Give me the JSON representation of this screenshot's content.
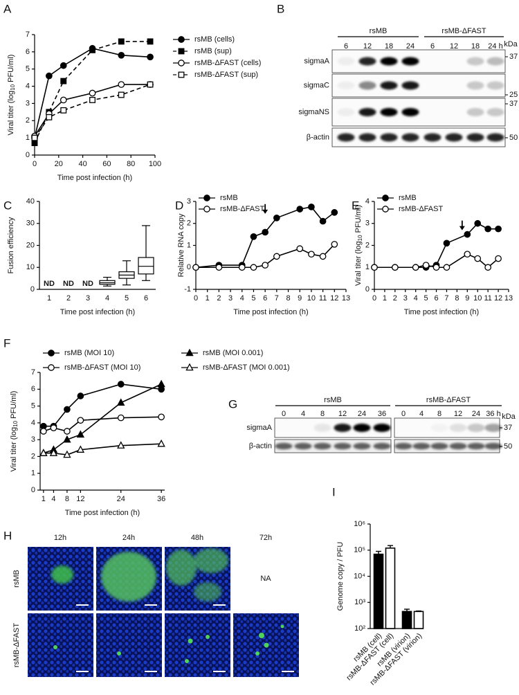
{
  "chart_data": [
    {
      "panel": "A",
      "type": "line",
      "xlabel": "Time post infection (h)",
      "ylabel": [
        "Viral titer (log",
        "10",
        " PFU/ml)"
      ],
      "xlim": [
        0,
        100
      ],
      "xticks": [
        0,
        20,
        40,
        60,
        80,
        100
      ],
      "ylim": [
        0,
        7
      ],
      "yticks": [
        0,
        1,
        2,
        3,
        4,
        5,
        6,
        7
      ],
      "series": [
        {
          "name": "rsMB (cells)",
          "color": "#000000",
          "marker": "circle",
          "filled": true,
          "dashed": false,
          "x": [
            0,
            12,
            24,
            48,
            72,
            96
          ],
          "values": [
            1.0,
            4.6,
            5.2,
            6.2,
            5.8,
            5.7
          ]
        },
        {
          "name": "rsMB (sup)",
          "color": "#000000",
          "marker": "square",
          "filled": true,
          "dashed": true,
          "x": [
            0,
            12,
            24,
            48,
            72,
            96
          ],
          "values": [
            0.7,
            2.5,
            4.3,
            6.1,
            6.6,
            6.6
          ]
        },
        {
          "name": "rsMB-ΔFAST (cells)",
          "color": "#000000",
          "marker": "circle",
          "filled": false,
          "dashed": false,
          "x": [
            0,
            12,
            24,
            48,
            72,
            96
          ],
          "values": [
            1.1,
            2.4,
            3.2,
            3.6,
            4.1,
            4.1
          ]
        },
        {
          "name": "rsMB-ΔFAST (sup)",
          "color": "#000000",
          "marker": "square",
          "filled": false,
          "dashed": true,
          "x": [
            0,
            12,
            24,
            48,
            72,
            96
          ],
          "values": [
            1.0,
            2.2,
            2.6,
            3.2,
            3.5,
            4.1
          ]
        }
      ]
    },
    {
      "panel": "C",
      "type": "box",
      "xlabel": "Time post infection (h)",
      "ylabel": "Fusion efficiency",
      "categories": [
        "1",
        "2",
        "3",
        "4",
        "5",
        "6"
      ],
      "notes": [
        "ND",
        "ND",
        "ND",
        null,
        null,
        null
      ],
      "boxes": [
        null,
        null,
        null,
        {
          "min": 1.5,
          "q1": 2.3,
          "median": 3,
          "q3": 4,
          "max": 5.5
        },
        {
          "min": 2,
          "q1": 5,
          "median": 6.5,
          "q3": 8,
          "max": 13
        },
        {
          "min": 4,
          "q1": 7,
          "median": 10.5,
          "q3": 14.5,
          "max": 29
        }
      ],
      "ylim": [
        0,
        40
      ],
      "yticks": [
        0,
        10,
        20,
        30,
        40
      ],
      "color": "#000000"
    },
    {
      "panel": "D",
      "type": "line",
      "xlabel": "Time post infection (h)",
      "ylabel": "Relative RNA copy",
      "xlim": [
        0,
        13
      ],
      "xticks": [
        0,
        1,
        2,
        3,
        4,
        5,
        6,
        7,
        8,
        9,
        10,
        11,
        12,
        13
      ],
      "ylim": [
        -1,
        3
      ],
      "yticks": [
        -1,
        0,
        1,
        2,
        3
      ],
      "arrow_x": 6,
      "series": [
        {
          "name": "rsMB",
          "color": "#000000",
          "marker": "circle",
          "filled": true,
          "dashed": false,
          "x": [
            0,
            2,
            4,
            5,
            6,
            7,
            9,
            10,
            11,
            12
          ],
          "values": [
            0,
            0.1,
            0.1,
            1.4,
            1.6,
            2.25,
            2.65,
            2.75,
            2.1,
            2.5
          ]
        },
        {
          "name": "rsMB-ΔFAST",
          "color": "#000000",
          "marker": "circle",
          "filled": false,
          "dashed": false,
          "x": [
            0,
            2,
            4,
            5,
            6,
            7,
            9,
            10,
            11,
            12
          ],
          "values": [
            0,
            0,
            0,
            0,
            0.1,
            0.5,
            0.85,
            0.6,
            0.5,
            1.05
          ]
        }
      ]
    },
    {
      "panel": "E",
      "type": "line",
      "xlabel": "Time post infection (h)",
      "ylabel": [
        "Viral titer (log",
        "10",
        " PFU/ml)"
      ],
      "xlim": [
        0,
        13
      ],
      "xticks": [
        0,
        1,
        2,
        3,
        4,
        5,
        6,
        7,
        8,
        9,
        10,
        11,
        12,
        13
      ],
      "ylim": [
        0,
        4
      ],
      "yticks": [
        0,
        1,
        2,
        3,
        4
      ],
      "arrow_x": 8.5,
      "series": [
        {
          "name": "rsMB",
          "color": "#000000",
          "marker": "circle",
          "filled": true,
          "dashed": false,
          "x": [
            0,
            2,
            4,
            5,
            6,
            7,
            9,
            10,
            11,
            12
          ],
          "values": [
            1,
            1,
            1,
            1,
            1.1,
            2.1,
            2.5,
            3.0,
            2.75,
            2.75
          ]
        },
        {
          "name": "rsMB-ΔFAST",
          "color": "#000000",
          "marker": "circle",
          "filled": false,
          "dashed": false,
          "x": [
            0,
            2,
            4,
            5,
            6,
            7,
            9,
            10,
            11,
            12
          ],
          "values": [
            1,
            1,
            1,
            1.1,
            1.0,
            1.0,
            1.6,
            1.4,
            1.0,
            1.4
          ]
        }
      ]
    },
    {
      "panel": "F",
      "type": "line",
      "xlabel": "Time post infection (h)",
      "ylabel": [
        "Viral titer (log",
        "10",
        " PFU/ml)"
      ],
      "xlim": [
        0,
        37
      ],
      "xticks": [
        1,
        4,
        8,
        12,
        24,
        36
      ],
      "ylim": [
        0,
        7
      ],
      "yticks": [
        0,
        1,
        2,
        3,
        4,
        5,
        6,
        7
      ],
      "series": [
        {
          "name": "rsMB (MOI 10)",
          "color": "#000000",
          "marker": "circle",
          "filled": true,
          "dashed": false,
          "x": [
            1,
            4,
            8,
            12,
            24,
            36
          ],
          "values": [
            3.8,
            3.8,
            4.8,
            5.6,
            6.3,
            6.0
          ]
        },
        {
          "name": "rsMB-ΔFAST (MOI 10)",
          "color": "#000000",
          "marker": "circle",
          "filled": false,
          "dashed": false,
          "x": [
            1,
            4,
            8,
            12,
            24,
            36
          ],
          "values": [
            3.5,
            3.7,
            3.5,
            4.15,
            4.3,
            4.35
          ]
        },
        {
          "name": "rsMB (MOI 0.001)",
          "color": "#000000",
          "marker": "triangle",
          "filled": true,
          "dashed": false,
          "x": [
            1,
            4,
            8,
            12,
            24,
            36
          ],
          "values": [
            2.2,
            2.4,
            3.0,
            3.3,
            5.2,
            6.3
          ]
        },
        {
          "name": "rsMB-ΔFAST (MOI 0.001)",
          "color": "#000000",
          "marker": "triangle",
          "filled": false,
          "dashed": false,
          "x": [
            1,
            4,
            8,
            12,
            24,
            36
          ],
          "values": [
            2.2,
            2.2,
            2.1,
            2.4,
            2.65,
            2.75
          ]
        }
      ]
    },
    {
      "panel": "I",
      "type": "bar",
      "log": true,
      "ylabel": "Genome copy / PFU",
      "categories": [
        "rsMB (cell)",
        "rsMB-ΔFAST (cell)",
        "rsMB (virion)",
        "rsMB-ΔFAST (virion)"
      ],
      "values": [
        70000,
        120000,
        450,
        450
      ],
      "errors": [
        20000,
        30000,
        100,
        20
      ],
      "colors": [
        "#000000",
        "#ffffff",
        "#000000",
        "#ffffff"
      ],
      "ylim": [
        100,
        1000000
      ],
      "yticks": [
        {
          "value": 100,
          "label": "10²"
        },
        {
          "value": 1000,
          "label": "10³"
        },
        {
          "value": 10000,
          "label": "10⁴"
        },
        {
          "value": 100000,
          "label": "10⁵"
        },
        {
          "value": 1000000,
          "label": "10⁶"
        }
      ]
    }
  ],
  "blots": [
    {
      "panel": "B",
      "unit": "kDa",
      "groups": [
        {
          "name": "rsMB",
          "lanes": [
            "6",
            "12",
            "18",
            "24"
          ]
        },
        {
          "name": "rsMB-ΔFAST",
          "lanes": [
            "6",
            "12",
            "18",
            "24 h"
          ]
        }
      ],
      "rows": [
        {
          "name": "sigmaA",
          "marker": 37
        },
        {
          "name": "sigmaC",
          "marker": 25
        },
        {
          "name": "sigmaNS",
          "marker": 37
        },
        {
          "name": "β-actin",
          "marker": 50
        }
      ]
    },
    {
      "panel": "G",
      "unit": "kDa",
      "groups": [
        {
          "name": "rsMB",
          "lanes": [
            "0",
            "4",
            "8",
            "12",
            "24",
            "36"
          ]
        },
        {
          "name": "rsMB-ΔFAST",
          "lanes": [
            "0",
            "4",
            "8",
            "12",
            "24",
            "36 h"
          ]
        }
      ],
      "rows": [
        {
          "name": "sigmaA",
          "marker": 37
        },
        {
          "name": "β-actin",
          "marker": 50
        }
      ]
    }
  ],
  "micrographs": {
    "panel": "H",
    "columns": [
      "12h",
      "24h",
      "48h",
      "72h"
    ],
    "rows": [
      "rsMB",
      "rsMB-ΔFAST"
    ],
    "missing": "NA"
  }
}
